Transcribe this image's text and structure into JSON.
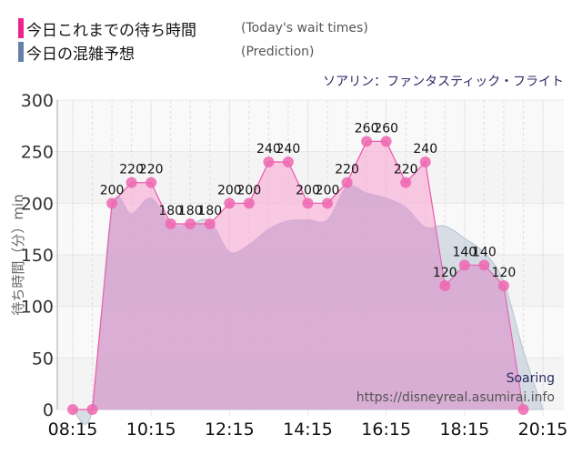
{
  "legend": {
    "items": [
      {
        "label_jp": "今日これまでの待ち時間",
        "label_en": "(Today's wait times)",
        "color": "#ee2290"
      },
      {
        "label_jp": "今日の混雑予想",
        "label_en": "(Prediction)",
        "color": "#6680aa"
      }
    ]
  },
  "subtitle": "ソアリン：ファンタスティック・フライト",
  "attribution": {
    "name": "Soaring",
    "url": "https://disneyreal.asumirai.info"
  },
  "chart_data": {
    "type": "area",
    "title": "ソアリン：ファンタスティック・フライト",
    "xlabel": "",
    "ylabel": "待ち時間（分）min",
    "ylim": [
      0,
      300
    ],
    "yticks": [
      0,
      50,
      100,
      150,
      200,
      250,
      300
    ],
    "xticks": [
      "08:15",
      "10:15",
      "12:15",
      "14:15",
      "16:15",
      "18:15",
      "20:15"
    ],
    "grid": true,
    "legend_position": "top-left",
    "series": [
      {
        "name": "今日これまでの待ち時間 (Today's wait times)",
        "color": "#ee55aa",
        "data_labels": true,
        "x": [
          "08:15",
          "08:45",
          "09:15",
          "09:45",
          "10:15",
          "10:45",
          "11:15",
          "11:45",
          "12:15",
          "12:45",
          "13:15",
          "13:45",
          "14:15",
          "14:45",
          "15:15",
          "15:45",
          "16:15",
          "16:45",
          "17:15",
          "17:45",
          "18:15",
          "18:45",
          "19:15",
          "19:45"
        ],
        "values": [
          0,
          0,
          200,
          220,
          220,
          180,
          180,
          180,
          200,
          200,
          240,
          240,
          200,
          200,
          220,
          260,
          260,
          220,
          240,
          120,
          140,
          140,
          120,
          0
        ]
      },
      {
        "name": "今日の混雑予想 (Prediction)",
        "color": "#b8c4d4",
        "data_labels": false,
        "x": [
          "08:15",
          "08:45",
          "09:15",
          "09:45",
          "10:15",
          "10:45",
          "11:15",
          "11:45",
          "12:15",
          "12:45",
          "13:15",
          "13:45",
          "14:15",
          "14:45",
          "15:15",
          "15:45",
          "16:15",
          "16:45",
          "17:15",
          "17:45",
          "18:15",
          "18:45",
          "19:15",
          "19:45",
          "20:15"
        ],
        "values": [
          0,
          0,
          194,
          190,
          205,
          180,
          180,
          183,
          153,
          160,
          175,
          183,
          184,
          184,
          216,
          210,
          205,
          196,
          177,
          178,
          166,
          152,
          124,
          57,
          0
        ]
      }
    ]
  }
}
